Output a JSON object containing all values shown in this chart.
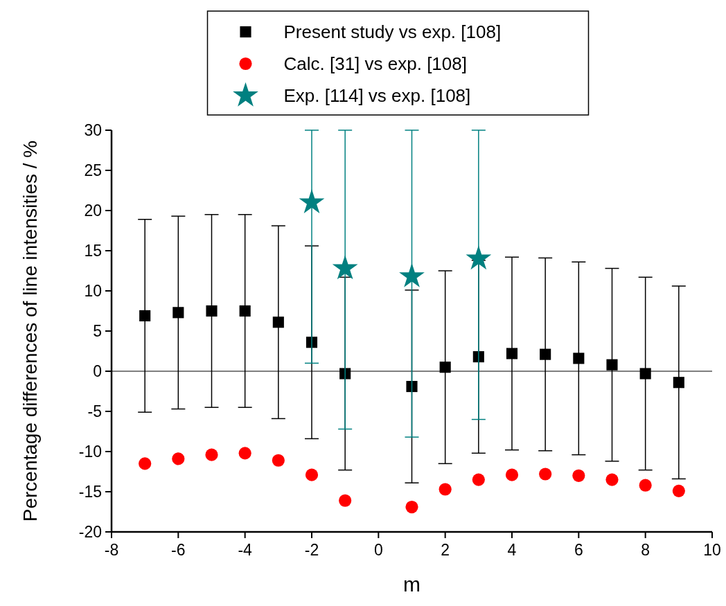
{
  "chart_data": {
    "type": "scatter",
    "xlabel": "m",
    "ylabel": "Percentage differences of line intensities / %",
    "x": [
      -7,
      -6,
      -5,
      -4,
      -3,
      -2,
      -1,
      1,
      2,
      3,
      4,
      5,
      6,
      7,
      8,
      9
    ],
    "xlim": [
      -8,
      10
    ],
    "xticks": [
      -8,
      -6,
      -4,
      -2,
      0,
      2,
      4,
      6,
      8,
      10
    ],
    "ylim": [
      -20,
      30
    ],
    "yticks": [
      -20,
      -15,
      -10,
      -5,
      0,
      5,
      10,
      15,
      20,
      25,
      30
    ],
    "legend": "top",
    "grid": false,
    "ref_lines": [
      {
        "axis": "y",
        "value": 0,
        "color": "#000000"
      }
    ],
    "series": [
      {
        "name": "Present study vs exp. [108]",
        "color": "#000000",
        "marker": "square",
        "values": [
          6.9,
          7.3,
          7.5,
          7.5,
          6.1,
          3.6,
          -0.3,
          -1.9,
          0.5,
          1.8,
          2.2,
          2.1,
          1.6,
          0.8,
          -0.3,
          -1.4
        ],
        "errors": [
          12,
          12,
          12,
          12,
          12,
          12,
          12,
          12,
          12,
          12,
          12,
          12,
          12,
          12,
          12,
          12
        ]
      },
      {
        "name": "Calc. [31] vs exp. [108]",
        "color": "#ff0000",
        "marker": "circle",
        "values": [
          -11.5,
          -10.9,
          -10.4,
          -10.2,
          -11.1,
          -12.9,
          -16.1,
          -16.9,
          -14.7,
          -13.5,
          -12.9,
          -12.8,
          -13.0,
          -13.5,
          -14.2,
          -14.9
        ]
      },
      {
        "name": "Exp. [114] vs exp. [108]",
        "color": "#008080",
        "marker": "star",
        "x": [
          -2,
          -1,
          1,
          3
        ],
        "values": [
          21.0,
          12.8,
          11.8,
          14.0
        ],
        "errors": [
          [
            1.0,
            30
          ],
          [
            -7.2,
            30
          ],
          [
            -8.2,
            30
          ],
          [
            -6.0,
            30
          ]
        ]
      }
    ]
  }
}
